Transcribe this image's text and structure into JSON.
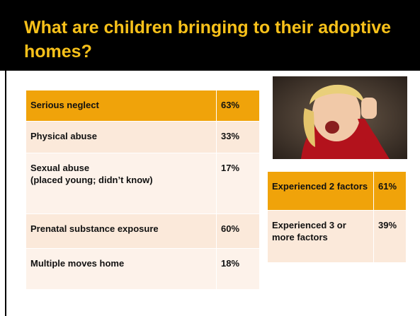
{
  "title": "What are children bringing to their adoptive homes?",
  "table_left": {
    "rows": [
      {
        "label": "Serious neglect",
        "value": "63%"
      },
      {
        "label": "Physical abuse",
        "value": "33%"
      },
      {
        "label": "Sexual abuse\n(placed young; didn’t know)",
        "value": "17%"
      },
      {
        "label": "Prenatal substance exposure",
        "value": "60%"
      },
      {
        "label": "Multiple moves home",
        "value": "18%"
      }
    ]
  },
  "table_right": {
    "rows": [
      {
        "label": "Experienced 2 factors",
        "value": "61%"
      },
      {
        "label": "Experienced 3 or more factors",
        "value": "39%"
      }
    ]
  }
}
